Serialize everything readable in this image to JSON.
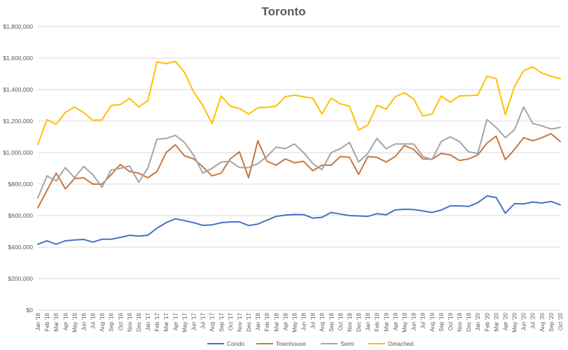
{
  "chart_data": {
    "type": "line",
    "title": "Toronto",
    "xlabel": "",
    "ylabel": "",
    "ylim": [
      0,
      1800000
    ],
    "y_ticks": [
      0,
      200000,
      400000,
      600000,
      800000,
      1000000,
      1200000,
      1400000,
      1600000,
      1800000
    ],
    "y_tick_labels": [
      "$0",
      "$200,000",
      "$400,000",
      "$600,000",
      "$800,000",
      "$1,000,000",
      "$1,200,000",
      "$1,400,000",
      "$1,600,000",
      "$1,800,000"
    ],
    "grid": "horizontal",
    "legend_position": "bottom",
    "categories": [
      "Jan '16",
      "Feb '16",
      "Mar '16",
      "Apr '16",
      "May '16",
      "Jun '16",
      "Jul '16",
      "Aug '16",
      "Sep '16",
      "Oct '16",
      "Nov '16",
      "Dec '16",
      "Jan '17",
      "Feb '17",
      "Mar '17",
      "Apr '17",
      "May '17",
      "Jun '17",
      "Jul '17",
      "Aug '17",
      "Sep '17",
      "Oct '17",
      "Nov '17",
      "Dec '17",
      "Jan '18",
      "Feb '18",
      "Mar '18",
      "Apr '18",
      "May '18",
      "Jun '18",
      "Jul '18",
      "Aug '18",
      "Sep '18",
      "Oct '18",
      "Nov '18",
      "Dec '18",
      "Jan '19",
      "Feb '19",
      "Mar '19",
      "Apr '19",
      "May '19",
      "Jun '19",
      "Jul '19",
      "Aug '19",
      "Sep '19",
      "Oct '19",
      "Nov '19",
      "Dec '19",
      "Jan '20",
      "Feb '20",
      "Mar '20",
      "Apr '20",
      "May '20",
      "Jun '20",
      "Jul '20",
      "Aug '20",
      "Sep '20",
      "Oct '20"
    ],
    "series": [
      {
        "name": "Condo",
        "color": "#4472c4",
        "values": [
          418000,
          440000,
          418000,
          440000,
          445000,
          449000,
          432000,
          450000,
          450000,
          462000,
          475000,
          470000,
          475000,
          520000,
          555000,
          580000,
          568000,
          555000,
          538000,
          541000,
          555000,
          560000,
          560000,
          537000,
          546000,
          571000,
          595000,
          603000,
          607000,
          606000,
          584000,
          589000,
          620000,
          610000,
          600000,
          598000,
          595000,
          612000,
          605000,
          636000,
          640000,
          638000,
          630000,
          620000,
          635000,
          662000,
          662000,
          658000,
          682000,
          725000,
          715000,
          615000,
          676000,
          674000,
          686000,
          680000,
          690000,
          668000
        ]
      },
      {
        "name": "Townhouse",
        "color": "#c8773e",
        "values": [
          650000,
          760000,
          870000,
          770000,
          835000,
          840000,
          800000,
          800000,
          860000,
          925000,
          880000,
          870000,
          840000,
          880000,
          1000000,
          1050000,
          980000,
          960000,
          910000,
          852000,
          870000,
          960000,
          1005000,
          840000,
          1075000,
          945000,
          920000,
          960000,
          935000,
          945000,
          885000,
          920000,
          920000,
          975000,
          970000,
          862000,
          975000,
          970000,
          940000,
          975000,
          1045000,
          1020000,
          960000,
          958000,
          995000,
          985000,
          950000,
          960000,
          985000,
          1060000,
          1105000,
          955000,
          1020000,
          1095000,
          1075000,
          1095000,
          1120000,
          1070000
        ]
      },
      {
        "name": "Semi",
        "color": "#a5a5a5",
        "values": [
          712000,
          852000,
          820000,
          905000,
          840000,
          912000,
          860000,
          780000,
          890000,
          900000,
          915000,
          812000,
          902000,
          1085000,
          1090000,
          1110000,
          1065000,
          982000,
          870000,
          900000,
          940000,
          945000,
          905000,
          905000,
          930000,
          975000,
          1035000,
          1025000,
          1055000,
          1000000,
          930000,
          892000,
          1000000,
          1025000,
          1065000,
          940000,
          995000,
          1090000,
          1025000,
          1055000,
          1055000,
          1055000,
          975000,
          955000,
          1070000,
          1100000,
          1070000,
          1005000,
          995000,
          1210000,
          1160000,
          1095000,
          1145000,
          1290000,
          1185000,
          1170000,
          1150000,
          1160000
        ]
      },
      {
        "name": "Detached",
        "color": "#ffc000",
        "values": [
          1050000,
          1210000,
          1180000,
          1255000,
          1290000,
          1255000,
          1205000,
          1208000,
          1300000,
          1305000,
          1345000,
          1290000,
          1330000,
          1575000,
          1565000,
          1580000,
          1510000,
          1385000,
          1300000,
          1185000,
          1360000,
          1295000,
          1280000,
          1245000,
          1285000,
          1288000,
          1295000,
          1355000,
          1365000,
          1355000,
          1345000,
          1245000,
          1345000,
          1310000,
          1295000,
          1143000,
          1175000,
          1300000,
          1275000,
          1355000,
          1380000,
          1340000,
          1232000,
          1245000,
          1360000,
          1320000,
          1360000,
          1362000,
          1365000,
          1485000,
          1470000,
          1240000,
          1420000,
          1520000,
          1545000,
          1505000,
          1485000,
          1470000
        ]
      }
    ]
  }
}
